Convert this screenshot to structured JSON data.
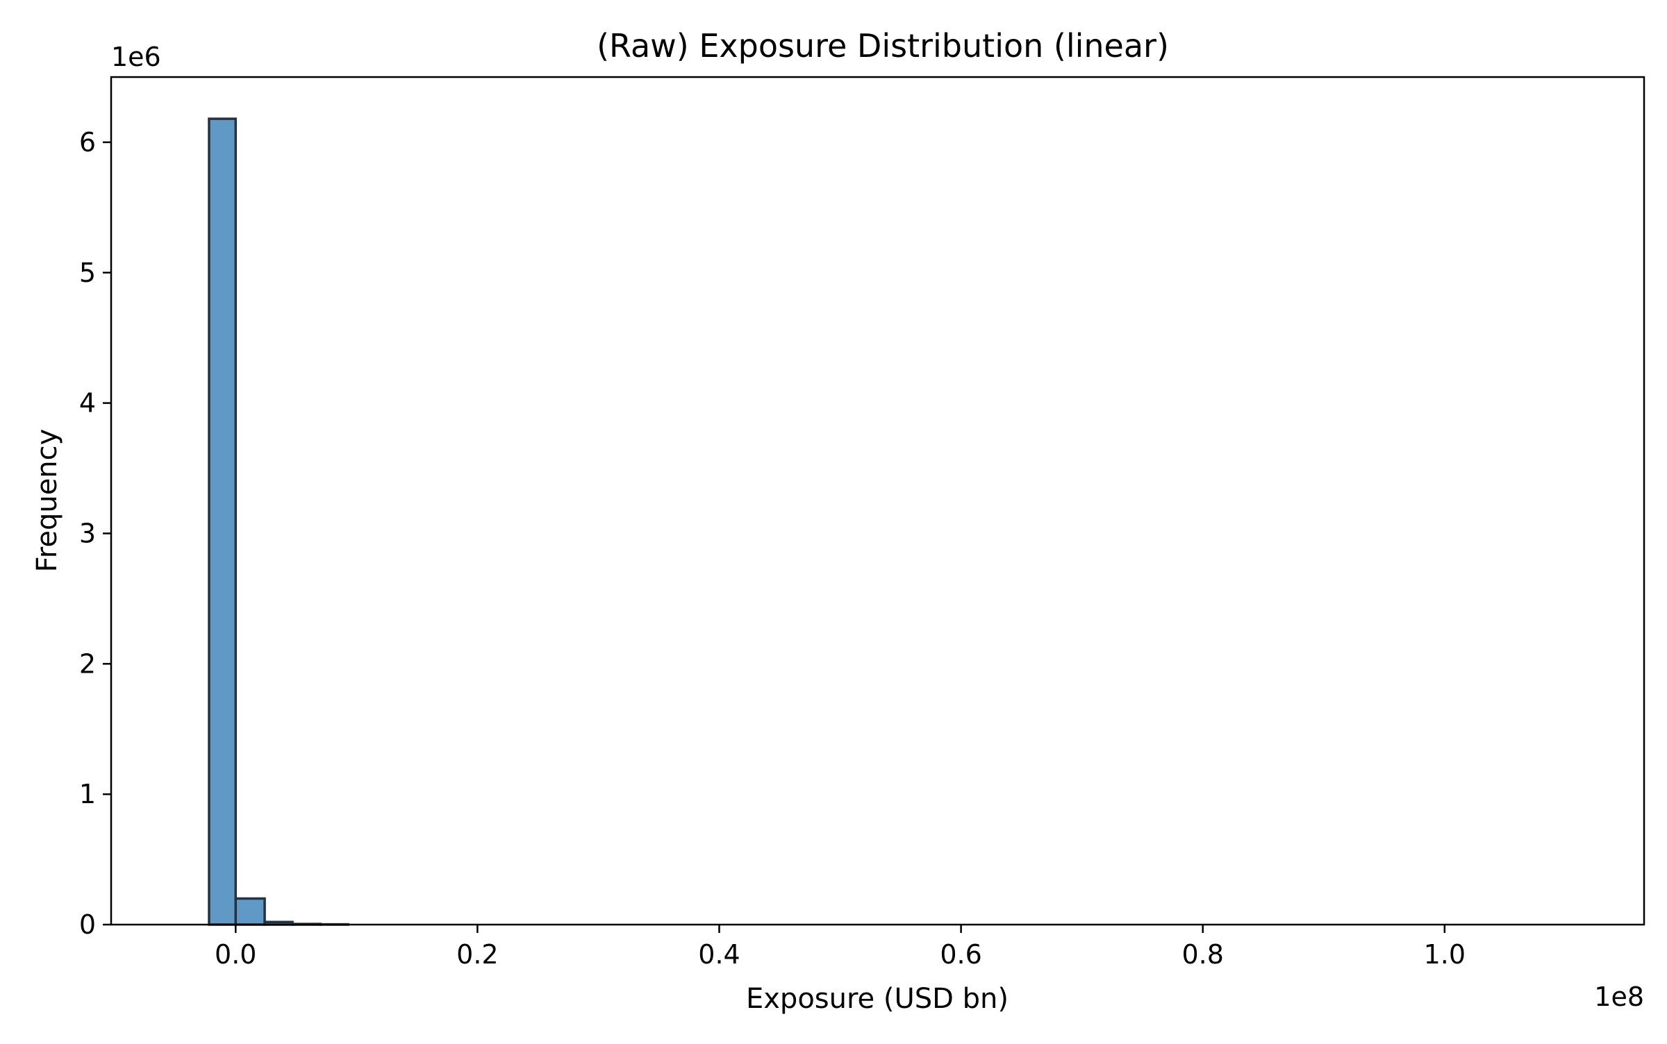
{
  "chart_data": {
    "type": "bar",
    "title": "(Raw) Exposure Distribution (linear)",
    "xlabel": "Exposure (USD bn)",
    "ylabel": "Frequency",
    "x_offset_label": "1e8",
    "y_offset_label": "1e6",
    "xlim": [
      -10300000,
      116500000
    ],
    "ylim": [
      0,
      6500000
    ],
    "x_ticks": [
      0,
      20000000,
      40000000,
      60000000,
      80000000,
      100000000
    ],
    "x_tick_labels": [
      "0.0",
      "0.2",
      "0.4",
      "0.6",
      "0.8",
      "1.0"
    ],
    "y_ticks": [
      0,
      1000000,
      2000000,
      3000000,
      4000000,
      5000000,
      6000000
    ],
    "y_tick_labels": [
      "0",
      "1",
      "2",
      "3",
      "4",
      "5",
      "6"
    ],
    "bins": [
      {
        "x0": -4400000,
        "x1": -2200000,
        "value": 0
      },
      {
        "x0": -2200000,
        "x1": 0,
        "value": 6180000
      },
      {
        "x0": 0,
        "x1": 2400000,
        "value": 200000
      },
      {
        "x0": 2400000,
        "x1": 4700000,
        "value": 20000
      },
      {
        "x0": 4700000,
        "x1": 7000000,
        "value": 5000
      },
      {
        "x0": 7000000,
        "x1": 9300000,
        "value": 2000
      },
      {
        "x0": 9300000,
        "x1": 110800000,
        "value": 0
      }
    ],
    "bar_color": "#6199c6",
    "edge_color": "#253240",
    "grid": false,
    "legend": "none"
  }
}
